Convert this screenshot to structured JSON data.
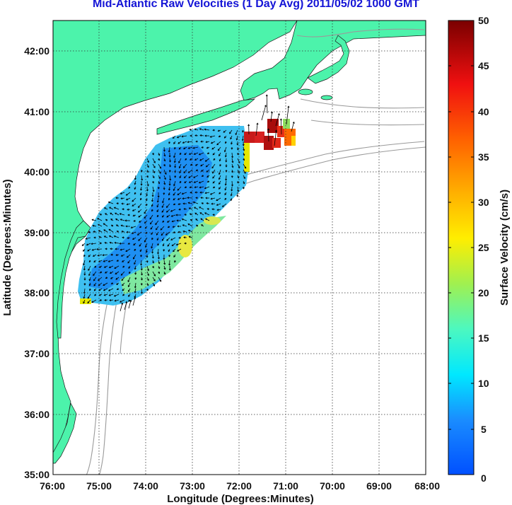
{
  "header": {
    "title": "Mid-Atlantic Raw Velocities (1 Day Avg) 2011/05/02 1000 GMT"
  },
  "axes": {
    "xlabel": "Longitude (Degrees:Minutes)",
    "ylabel": "Latitude (Degrees:Minutes)",
    "x_ticks": [
      "76:00",
      "75:00",
      "74:00",
      "73:00",
      "72:00",
      "71:00",
      "70:00",
      "69:00",
      "68:00"
    ],
    "y_ticks": [
      "42:00",
      "41:00",
      "40:00",
      "39:00",
      "38:00",
      "37:00",
      "36:00",
      "35:00"
    ]
  },
  "colorbar": {
    "label": "Surface Velocity (cm/s)",
    "ticks": [
      "50",
      "45",
      "40",
      "35",
      "30",
      "25",
      "20",
      "15",
      "10",
      "5",
      "0"
    ],
    "range": [
      0,
      50
    ]
  },
  "colors": {
    "land": "#4cf3ab",
    "title": "#1414d6",
    "isobath": "#9a9a9a",
    "grid": "#333333"
  },
  "chart_data": {
    "type": "heatmap",
    "title": "Mid-Atlantic Raw Velocities (1 Day Avg) 2011/05/02 1000 GMT",
    "xlabel": "Longitude (Degrees:Minutes)",
    "ylabel": "Latitude (Degrees:Minutes)",
    "xlim": [
      -76,
      -68
    ],
    "ylim": [
      35,
      42.5
    ],
    "value_label": "Surface Velocity (cm/s)",
    "value_range": [
      0,
      50
    ],
    "grid": true
  }
}
